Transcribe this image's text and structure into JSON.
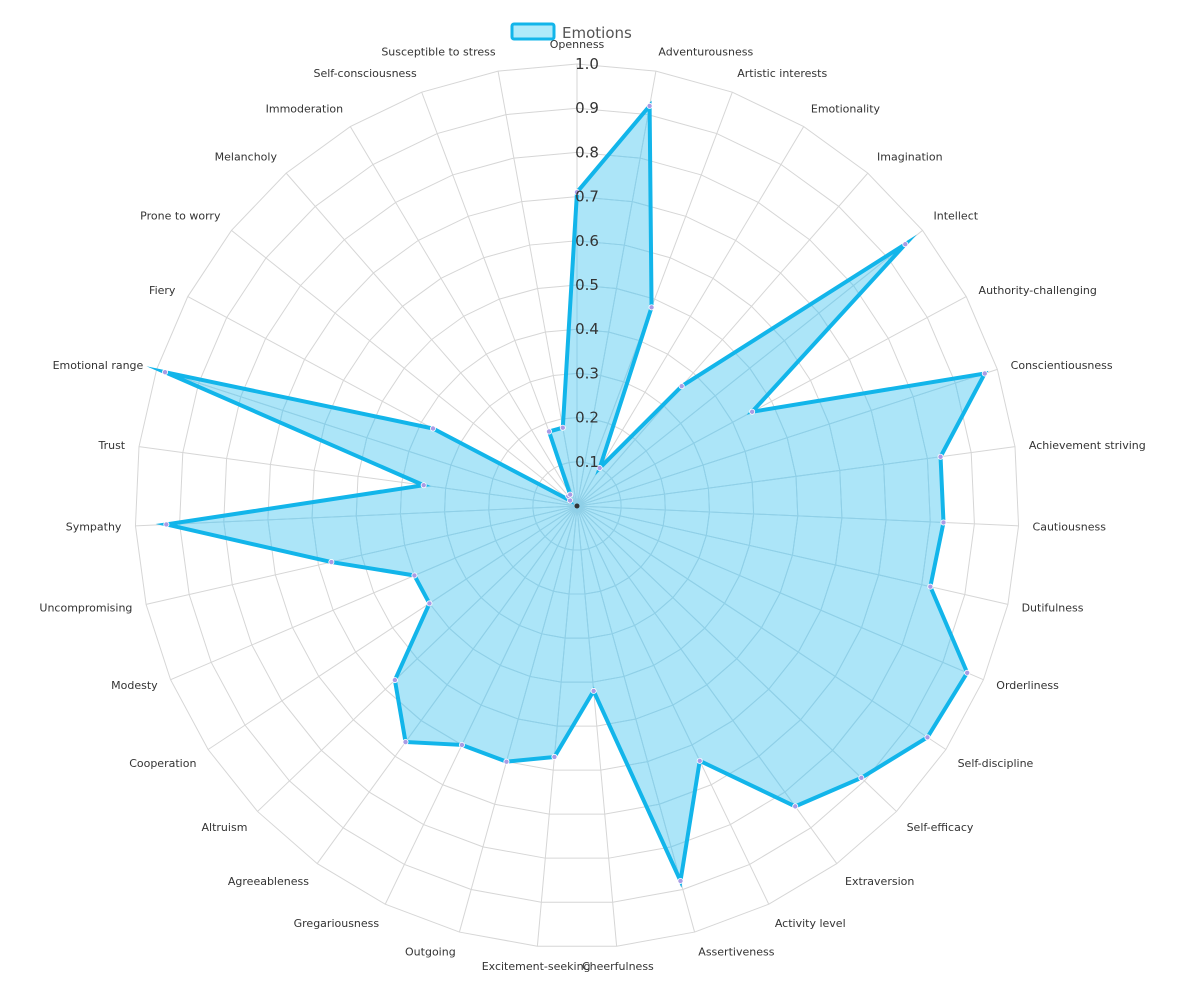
{
  "chart_data": {
    "type": "radar",
    "legend": {
      "label": "Emotions",
      "position": "top",
      "fill": "#aeeafa",
      "stroke": "#12b5ea"
    },
    "r_range": [
      0,
      1.0
    ],
    "r_ticks": [
      "0.1",
      "0.2",
      "0.3",
      "0.4",
      "0.5",
      "0.6",
      "0.7",
      "0.8",
      "0.9",
      "1.0"
    ],
    "grid": true,
    "colors": {
      "fill": "rgba(18,181,234,0.35)",
      "stroke": "#12b5ea",
      "point": "#a99be4",
      "grid": "#d6d6d6",
      "inner_grid": "#8fd0e8"
    },
    "categories": [
      "Openness",
      "Adventurousness",
      "Artistic interests",
      "Emotionality",
      "Imagination",
      "Intellect",
      "Authority-challenging",
      "Conscientiousness",
      "Achievement striving",
      "Cautiousness",
      "Dutifulness",
      "Orderliness",
      "Self-discipline",
      "Self-efficacy",
      "Extraversion",
      "Activity level",
      "Assertiveness",
      "Cheerfulness",
      "Excitement-seeking",
      "Outgoing",
      "Gregariousness",
      "Agreeableness",
      "Altruism",
      "Cooperation",
      "Modesty",
      "Uncompromising",
      "Sympathy",
      "Trust",
      "Emotional range",
      "Fiery",
      "Prone to worry",
      "Melancholy",
      "Immoderation",
      "Self-consciousness",
      "Susceptible to stress"
    ],
    "series": [
      {
        "name": "Emotions",
        "values": [
          0.71,
          0.92,
          0.48,
          0.1,
          0.36,
          0.95,
          0.45,
          0.97,
          0.83,
          0.83,
          0.82,
          0.96,
          0.95,
          0.89,
          0.84,
          0.64,
          0.88,
          0.42,
          0.57,
          0.6,
          0.6,
          0.66,
          0.57,
          0.4,
          0.4,
          0.57,
          0.93,
          0.35,
          0.98,
          0.37,
          0.02,
          0.03,
          0.03,
          0.18,
          0.18
        ]
      }
    ]
  }
}
